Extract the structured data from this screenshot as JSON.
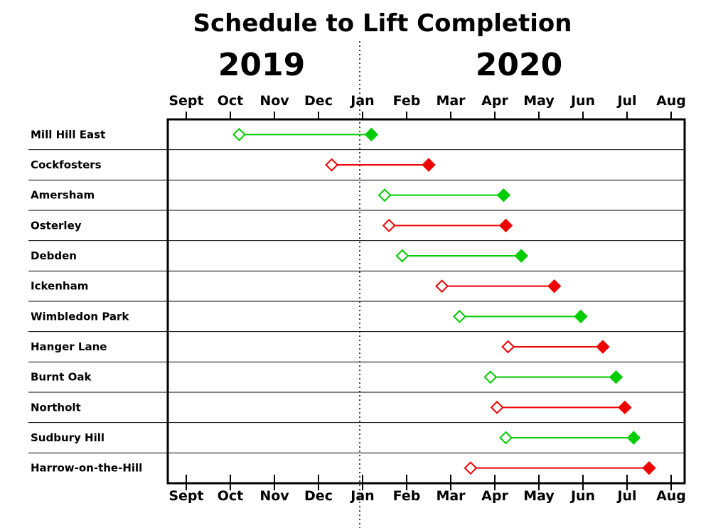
{
  "chart_data": {
    "type": "gantt",
    "title": "Schedule to Lift Completion",
    "years": [
      "2019",
      "2020"
    ],
    "months": [
      "Sept",
      "Oct",
      "Nov",
      "Dec",
      "Jan",
      "Feb",
      "Mar",
      "Apr",
      "May",
      "Jun",
      "Jul",
      "Aug"
    ],
    "colors": {
      "green": "#00cc00",
      "red": "#ee0000"
    },
    "legend": "none",
    "tasks": [
      {
        "name": "Mill Hill East",
        "start": 1.2,
        "end": 4.2,
        "color": "green"
      },
      {
        "name": "Cockfosters",
        "start": 3.3,
        "end": 5.5,
        "color": "red"
      },
      {
        "name": "Amersham",
        "start": 4.5,
        "end": 7.2,
        "color": "green"
      },
      {
        "name": "Osterley",
        "start": 4.6,
        "end": 7.25,
        "color": "red"
      },
      {
        "name": "Debden",
        "start": 4.9,
        "end": 7.6,
        "color": "green"
      },
      {
        "name": "Ickenham",
        "start": 5.8,
        "end": 8.35,
        "color": "red"
      },
      {
        "name": "Wimbledon Park",
        "start": 6.2,
        "end": 8.95,
        "color": "green"
      },
      {
        "name": "Hanger Lane",
        "start": 7.3,
        "end": 9.45,
        "color": "red"
      },
      {
        "name": "Burnt Oak",
        "start": 6.9,
        "end": 9.75,
        "color": "green"
      },
      {
        "name": "Northolt",
        "start": 7.05,
        "end": 9.95,
        "color": "red"
      },
      {
        "name": "Sudbury Hill",
        "start": 7.25,
        "end": 10.15,
        "color": "green"
      },
      {
        "name": "Harrow-on-the-Hill",
        "start": 6.45,
        "end": 10.5,
        "color": "red"
      }
    ]
  }
}
